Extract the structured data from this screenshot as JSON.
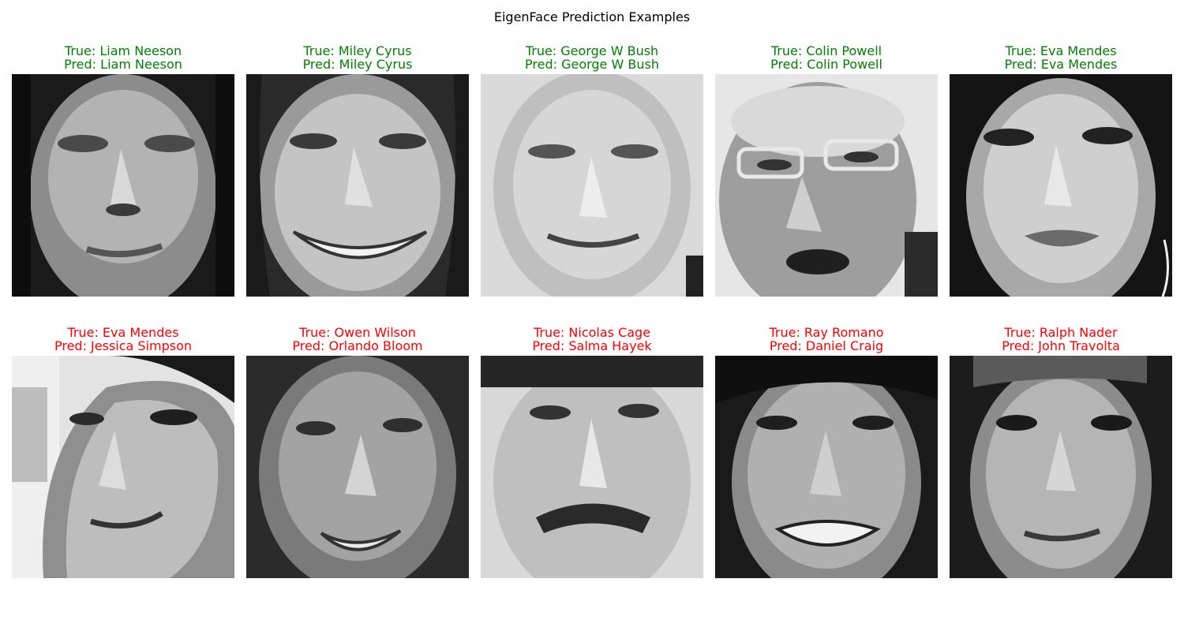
{
  "figure": {
    "title": "EigenFace Prediction Examples",
    "correct_color": "#008000",
    "incorrect_color": "#ff0000"
  },
  "panels": [
    {
      "true_label": "True: Liam Neeson",
      "pred_label": "Pred: Liam Neeson",
      "correct": true
    },
    {
      "true_label": "True: Miley Cyrus",
      "pred_label": "Pred: Miley Cyrus",
      "correct": true
    },
    {
      "true_label": "True: George W Bush",
      "pred_label": "Pred: George W Bush",
      "correct": true
    },
    {
      "true_label": "True: Colin Powell",
      "pred_label": "Pred: Colin Powell",
      "correct": true
    },
    {
      "true_label": "True: Eva Mendes",
      "pred_label": "Pred: Eva Mendes",
      "correct": true
    },
    {
      "true_label": "True: Eva Mendes",
      "pred_label": "Pred: Jessica Simpson",
      "correct": false
    },
    {
      "true_label": "True: Owen Wilson",
      "pred_label": "Pred: Orlando Bloom",
      "correct": false
    },
    {
      "true_label": "True: Nicolas Cage",
      "pred_label": "Pred: Salma Hayek",
      "correct": false
    },
    {
      "true_label": "True: Ray Romano",
      "pred_label": "Pred: Daniel Craig",
      "correct": false
    },
    {
      "true_label": "True: Ralph Nader",
      "pred_label": "Pred: John Travolta",
      "correct": false
    }
  ]
}
